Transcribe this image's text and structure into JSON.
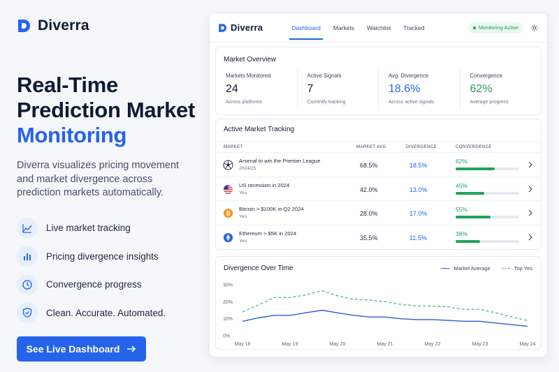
{
  "brand": {
    "name": "Diverra",
    "color": "#2563eb"
  },
  "hero": {
    "headline_line1": "Real-Time",
    "headline_line2": "Prediction Market",
    "headline_accent": "Monitoring",
    "lede": "Diverra visualizes pricing movement and market divergence across prediction markets automatically.",
    "features": [
      {
        "label": "Live market tracking",
        "icon": "line-chart-icon"
      },
      {
        "label": "Pricing divergence insights",
        "icon": "bar-chart-icon"
      },
      {
        "label": "Convergence progress",
        "icon": "clock-icon"
      },
      {
        "label": "Clean. Accurate. Automated.",
        "icon": "shield-icon"
      }
    ],
    "cta_label": "See Live Dashboard",
    "cta_icon": "arrow-right-icon"
  },
  "app": {
    "brand_name": "Diverra",
    "tabs": [
      {
        "label": "Dashboard",
        "active": true
      },
      {
        "label": "Markets",
        "active": false
      },
      {
        "label": "Watchlist",
        "active": false
      },
      {
        "label": "Tracked",
        "active": false
      }
    ],
    "status": "Monitoring Active",
    "status_color": "#1f9d55",
    "settings_icon": "gear-icon"
  },
  "overview": {
    "title": "Market Overview",
    "stats": [
      {
        "label": "Markets Monitored",
        "value": "24",
        "sub": "Across platforms",
        "tone": "default"
      },
      {
        "label": "Active Signals",
        "value": "7",
        "sub": "Currently tracking",
        "tone": "default"
      },
      {
        "label": "Avg. Divergence",
        "value": "18.6%",
        "sub": "Across active signals",
        "tone": "blue"
      },
      {
        "label": "Convergence",
        "value": "62%",
        "sub": "Average progress",
        "tone": "green"
      }
    ]
  },
  "tracking": {
    "title": "Active Market Tracking",
    "columns": {
      "market": "MARKET",
      "avg": "MARKET AVG",
      "divergence": "DIVERGENCE",
      "convergence": "CONVERGENCE"
    },
    "rows": [
      {
        "icon": "soccer-ball-icon",
        "title": "Arsenal to win the Premier League",
        "sub": "2024/25",
        "avg": "68.5%",
        "divergence": "18.5%",
        "convergence": "62%",
        "convergence_value": 0.62
      },
      {
        "icon": "us-flag-icon",
        "title": "US recession in 2024",
        "sub": "Yes",
        "avg": "42.0%",
        "divergence": "13.0%",
        "convergence": "45%",
        "convergence_value": 0.45
      },
      {
        "icon": "bitcoin-icon",
        "title": "Bitcoin > $100K in Q2 2024",
        "sub": "Yes",
        "avg": "28.0%",
        "divergence": "17.0%",
        "convergence": "55%",
        "convergence_value": 0.55
      },
      {
        "icon": "ethereum-icon",
        "title": "Ethereum > $5K in 2024",
        "sub": "Yes",
        "avg": "35.5%",
        "divergence": "11.5%",
        "convergence": "38%",
        "convergence_value": 0.38
      }
    ]
  },
  "chart_data": {
    "type": "line",
    "title": "Divergence Over Time",
    "xlabel": "",
    "ylabel": "",
    "categories": [
      "May 18",
      "May 19",
      "May 20",
      "May 21",
      "May 22",
      "May 23",
      "May 24"
    ],
    "y_ticks": [
      "30%",
      "20%",
      "10%",
      "0%"
    ],
    "ylim": [
      0,
      30
    ],
    "grid": false,
    "legend_position": "top-right",
    "x": [
      0,
      0.33,
      0.67,
      1,
      1.33,
      1.67,
      2,
      2.33,
      2.67,
      3,
      3.33,
      3.67,
      4,
      4.33,
      4.67,
      5,
      5.33,
      5.67,
      6
    ],
    "series": [
      {
        "name": "Market Average",
        "color": "#2f5bd8",
        "dashed": false,
        "values": [
          8.5,
          10.5,
          12,
          12,
          13.5,
          15,
          13.5,
          12,
          11,
          11,
          10,
          9.5,
          9.5,
          9,
          8.5,
          8.5,
          7.5,
          6.5,
          5.5
        ]
      },
      {
        "name": "Top Yes",
        "color": "#5fb88a",
        "dashed": true,
        "values": [
          14,
          18,
          22.5,
          22.5,
          24,
          26.5,
          23.5,
          21.5,
          21,
          20,
          18.5,
          17.5,
          17.5,
          17,
          15.5,
          15.5,
          13.5,
          11,
          9
        ]
      }
    ]
  }
}
